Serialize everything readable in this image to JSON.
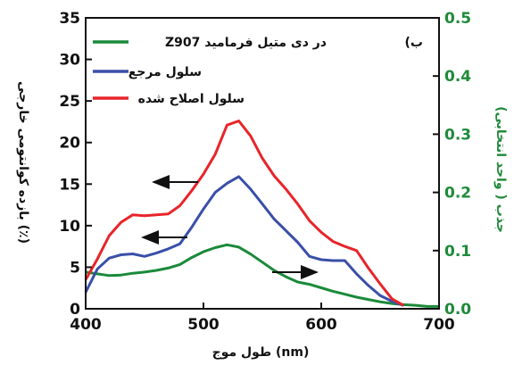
{
  "chart_data": {
    "type": "line",
    "panel_label": "(ب",
    "xlabel": "طول موج (nm)",
    "ylabel_left": "بازده کوانتومی خارجی (٪)",
    "ylabel_right": "جذب ( واحد انتخابی)",
    "xlim": [
      400,
      700
    ],
    "ylim_left": [
      0,
      35
    ],
    "ylim_right": [
      0,
      0.5
    ],
    "x_ticks": [
      400,
      500,
      600,
      700
    ],
    "y_left_ticks": [
      0,
      5,
      10,
      15,
      20,
      25,
      30,
      35
    ],
    "y_right_ticks": [
      0.0,
      0.1,
      0.2,
      0.3,
      0.4,
      0.5
    ],
    "legend_position": "top-left",
    "series": [
      {
        "name": "Z907 در دی متیل فرمامید",
        "axis": "right",
        "color": "#1a8a3a",
        "x": [
          400,
          410,
          420,
          430,
          440,
          450,
          460,
          470,
          480,
          490,
          500,
          510,
          520,
          530,
          540,
          550,
          560,
          570,
          580,
          590,
          600,
          610,
          620,
          630,
          640,
          650,
          660,
          670,
          680,
          690,
          700
        ],
        "y": [
          0.063,
          0.06,
          0.057,
          0.058,
          0.061,
          0.063,
          0.066,
          0.07,
          0.076,
          0.088,
          0.098,
          0.105,
          0.11,
          0.106,
          0.094,
          0.08,
          0.066,
          0.055,
          0.046,
          0.042,
          0.036,
          0.03,
          0.025,
          0.02,
          0.016,
          0.012,
          0.009,
          0.007,
          0.006,
          0.004,
          0.004
        ]
      },
      {
        "name": "سلول مرجع",
        "axis": "left",
        "color": "#3a4fa8",
        "x": [
          400,
          410,
          420,
          430,
          440,
          450,
          460,
          470,
          480,
          490,
          500,
          510,
          520,
          530,
          540,
          550,
          560,
          570,
          580,
          590,
          600,
          610,
          620,
          630,
          640,
          650,
          660,
          670
        ],
        "y": [
          2.0,
          4.8,
          6.1,
          6.5,
          6.6,
          6.3,
          6.7,
          7.2,
          7.8,
          9.8,
          12.0,
          14.0,
          15.1,
          15.9,
          14.4,
          12.6,
          10.8,
          9.4,
          8.0,
          6.3,
          5.9,
          5.8,
          5.8,
          4.2,
          2.8,
          1.6,
          0.9,
          0.4
        ]
      },
      {
        "name": "سلول اصلاح شده",
        "axis": "left",
        "color": "#e8242a",
        "x": [
          400,
          410,
          420,
          430,
          440,
          450,
          460,
          470,
          480,
          490,
          500,
          510,
          520,
          530,
          540,
          550,
          560,
          570,
          580,
          590,
          600,
          610,
          620,
          630,
          640,
          650,
          660,
          670
        ],
        "y": [
          3.5,
          6.0,
          8.8,
          10.4,
          11.3,
          11.2,
          11.3,
          11.4,
          12.4,
          14.2,
          16.2,
          18.6,
          22.1,
          22.6,
          20.8,
          18.1,
          16.0,
          14.4,
          12.6,
          10.6,
          9.2,
          8.1,
          7.5,
          7.0,
          4.9,
          3.0,
          1.2,
          0.4
        ]
      }
    ],
    "annotations": [
      {
        "type": "arrow",
        "direction": "left",
        "points_to": "left-axis"
      },
      {
        "type": "arrow",
        "direction": "left",
        "points_to": "left-axis"
      },
      {
        "type": "arrow",
        "direction": "right",
        "points_to": "right-axis"
      }
    ]
  }
}
